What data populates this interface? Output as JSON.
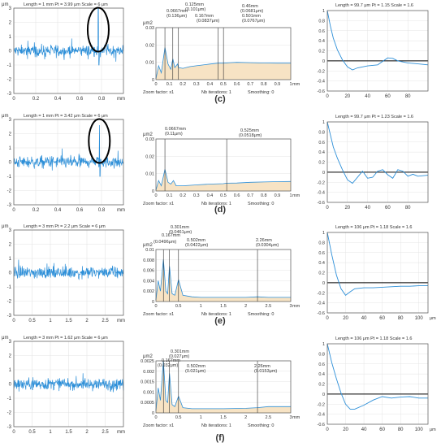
{
  "rows": [
    {
      "caption": "(c)",
      "profile": {
        "header": "Length = 1 mm  Pt = 3.99 μm  Scale = 6 μm",
        "unit": "μm",
        "xticks": [
          "0",
          "0.2",
          "0.4",
          "0.6",
          "0.8"
        ],
        "yticks": [
          "3",
          "2",
          "1",
          "0",
          "-1",
          "-2",
          "-3"
        ],
        "xunit": "mm"
      },
      "psd": {
        "unit": "μm2",
        "yticks": [
          "0.03",
          "0.02",
          "0.01",
          "0"
        ],
        "xticks": [
          "0",
          "0.1",
          "0.2",
          "0.3",
          "0.4",
          "0.5",
          "0.6",
          "0.7",
          "0.8",
          "0.9",
          "1"
        ],
        "xunit": "mm",
        "annotations": [
          {
            "line1": "0.125mm",
            "line2": "(0.101μm)"
          },
          {
            "line1": "0.0667mm",
            "line2": "(0.136μm)"
          },
          {
            "line1": "0.167mm",
            "line2": "(0.0837μm)"
          },
          {
            "line1": "0.46mm",
            "line2": "(0.0681μm)"
          },
          {
            "line1": "0.501mm",
            "line2": "(0.0767μm)"
          }
        ],
        "footer": {
          "zoom": "Zoom factor: x1",
          "iter": "Nb iterations: 1",
          "smooth": "Smoothing: 0"
        }
      },
      "acf": {
        "header": "Length = 99.7 μm  Pt = 1.15  Scale = 1.6",
        "yticks": [
          "1",
          "0.8",
          "0.6",
          "0.4",
          "0.2",
          "0",
          "-0.2",
          "-0.4",
          "-0.6"
        ],
        "xticks": [
          "0",
          "20",
          "40",
          "60",
          "80"
        ]
      }
    },
    {
      "caption": "(d)",
      "profile": {
        "header": "Length = 1 mm  Pt = 3.42 μm  Scale = 6 μm",
        "unit": "μm",
        "xticks": [
          "0",
          "0.2",
          "0.4",
          "0.6",
          "0.8"
        ],
        "yticks": [
          "3",
          "2",
          "1",
          "0",
          "-1",
          "-2",
          "-3"
        ],
        "xunit": "mm"
      },
      "psd": {
        "unit": "μm2",
        "yticks": [
          "0.03",
          "0.02",
          "0.01",
          "0"
        ],
        "xticks": [
          "0",
          "0.1",
          "0.2",
          "0.3",
          "0.4",
          "0.5",
          "0.6",
          "0.7",
          "0.8",
          "0.9",
          "1"
        ],
        "xunit": "mm",
        "annotations": [
          {
            "line1": "0.0667mm",
            "line2": "(0.11μm)"
          },
          {
            "line1": "0.525mm",
            "line2": "(0.0518μm)"
          }
        ],
        "footer": {
          "zoom": "Zoom factor: x1",
          "iter": "Nb iterations: 1",
          "smooth": "Smoothing: 0"
        }
      },
      "acf": {
        "header": "Length = 99.7 μm  Pt = 1.23  Scale = 1.6",
        "yticks": [
          "1",
          "0.8",
          "0.6",
          "0.4",
          "0.2",
          "0",
          "-0.2",
          "-0.4",
          "-0.6"
        ],
        "xticks": [
          "0",
          "20",
          "40",
          "60",
          "80"
        ]
      }
    },
    {
      "caption": "(e)",
      "profile": {
        "header": "Length = 3 mm  Pt = 2.2 μm  Scale = 6 μm",
        "unit": "μm",
        "xticks": [
          "0",
          "0.5",
          "1",
          "1.5",
          "2",
          "2.5"
        ],
        "yticks": [
          "3",
          "2",
          "1",
          "0",
          "-1",
          "-2",
          "-3"
        ],
        "xunit": "mm"
      },
      "psd": {
        "unit": "μm2",
        "yticks": [
          "0.01",
          "0.008",
          "0.006",
          "0.004",
          "0.002",
          "0"
        ],
        "xticks": [
          "0",
          "0.5",
          "1",
          "1.5",
          "2",
          "2.5",
          "3"
        ],
        "xunit": "mm",
        "annotations": [
          {
            "line1": "0.301mm",
            "line2": "(0.0461μm)"
          },
          {
            "line1": "0.167mm",
            "line2": "(0.0496μm)"
          },
          {
            "line1": "0.502mm",
            "line2": "(0.0422μm)"
          },
          {
            "line1": "2.26mm",
            "line2": "(0.0304μm)"
          }
        ],
        "footer": {
          "zoom": "Zoom factor: x1",
          "iter": "Nb iterations: 1",
          "smooth": "Smoothing: 0"
        }
      },
      "acf": {
        "header": "Length = 106 μm  Pt = 1.18  Scale = 1.6",
        "yticks": [
          "1",
          "0.8",
          "0.6",
          "0.4",
          "0.2",
          "0",
          "-0.2",
          "-0.4",
          "-0.6"
        ],
        "xticks": [
          "0",
          "20",
          "40",
          "60",
          "80",
          "100"
        ],
        "xunit": "μm"
      }
    },
    {
      "caption": "(f)",
      "profile": {
        "header": "Length = 3 mm  Pt = 1.62 μm  Scale = 6 μm",
        "unit": "μm",
        "xticks": [
          "0",
          "0.5",
          "1",
          "1.5",
          "2",
          "2.5"
        ],
        "yticks": [
          "3",
          "2",
          "1",
          "0",
          "-1",
          "-2",
          "-3"
        ],
        "xunit": "mm"
      },
      "psd": {
        "unit": "μm2",
        "yticks": [
          "0.0025",
          "0.002",
          "0.0015",
          "0.001",
          "0.0005",
          "0"
        ],
        "xticks": [
          "0",
          "0.5",
          "1",
          "1.5",
          "2",
          "2.5",
          "3"
        ],
        "xunit": "mm",
        "annotations": [
          {
            "line1": "0.301mm",
            "line2": "(0.027μm)"
          },
          {
            "line1": "0.167mm",
            "line2": "(0.032μm)"
          },
          {
            "line1": "0.502mm",
            "line2": "(0.021μm)"
          },
          {
            "line1": "2.26mm",
            "line2": "(0.0153μm)"
          }
        ],
        "footer": {
          "zoom": "Zoom factor: x1",
          "iter": "Nb iterations: 1",
          "smooth": "Smoothing: 0"
        }
      },
      "acf": {
        "header": "Length = 106 μm  Pt = 1.18  Scale = 1.6",
        "yticks": [
          "1",
          "0.8",
          "0.6",
          "0.4",
          "0.2",
          "0",
          "-0.2",
          "-0.4",
          "-0.6"
        ],
        "xticks": [
          "0",
          "20",
          "40",
          "60",
          "80",
          "100"
        ],
        "xunit": "μm"
      }
    }
  ],
  "chart_data": [
    {
      "type": "line",
      "panel": "c-profile",
      "xlim": [
        0,
        1
      ],
      "ylim": [
        -3,
        3
      ],
      "spike_x": 0.77,
      "spike_y": 3.0,
      "circled": true
    },
    {
      "type": "area",
      "panel": "c-psd",
      "xlim": [
        0,
        1
      ],
      "ylim": [
        0,
        0.03
      ],
      "x": [
        0.0,
        0.02,
        0.04,
        0.0667,
        0.09,
        0.11,
        0.125,
        0.14,
        0.16,
        0.167,
        0.2,
        0.25,
        0.3,
        0.35,
        0.4,
        0.46,
        0.501,
        0.55,
        0.6,
        0.7,
        0.8,
        0.9,
        1.0
      ],
      "y": [
        0.0005,
        0.008,
        0.004,
        0.0185,
        0.009,
        0.006,
        0.012,
        0.007,
        0.009,
        0.007,
        0.0065,
        0.0075,
        0.008,
        0.0085,
        0.009,
        0.0095,
        0.0095,
        0.0098,
        0.01,
        0.0098,
        0.0096,
        0.0095,
        0.0095
      ],
      "peaks_x": [
        0.0667,
        0.125,
        0.167,
        0.46,
        0.501
      ]
    },
    {
      "type": "line",
      "panel": "c-acf",
      "xlim": [
        0,
        100
      ],
      "ylim": [
        -0.6,
        1
      ],
      "x": [
        0,
        3,
        6,
        10,
        15,
        20,
        25,
        30,
        40,
        50,
        60,
        65,
        70,
        80,
        90,
        100
      ],
      "y": [
        1.0,
        0.7,
        0.45,
        0.22,
        0.02,
        -0.12,
        -0.18,
        -0.14,
        -0.1,
        -0.08,
        0.06,
        0.05,
        0.0,
        -0.04,
        -0.06,
        -0.08
      ]
    },
    {
      "type": "line",
      "panel": "d-profile",
      "xlim": [
        0,
        1
      ],
      "ylim": [
        -3,
        3
      ],
      "spike_x": 0.78,
      "spike_y": 2.6,
      "circled": true
    },
    {
      "type": "area",
      "panel": "d-psd",
      "xlim": [
        0,
        1
      ],
      "ylim": [
        0,
        0.03
      ],
      "x": [
        0.0,
        0.02,
        0.04,
        0.0667,
        0.09,
        0.11,
        0.13,
        0.15,
        0.2,
        0.3,
        0.4,
        0.5,
        0.525,
        0.6,
        0.7,
        0.8,
        0.9,
        1.0
      ],
      "y": [
        0.0005,
        0.006,
        0.003,
        0.0125,
        0.005,
        0.004,
        0.006,
        0.003,
        0.003,
        0.0035,
        0.004,
        0.0042,
        0.0045,
        0.0046,
        0.005,
        0.0052,
        0.0054,
        0.0055
      ],
      "peaks_x": [
        0.0667,
        0.525
      ]
    },
    {
      "type": "line",
      "panel": "d-acf",
      "xlim": [
        0,
        100
      ],
      "ylim": [
        -0.6,
        1
      ],
      "x": [
        0,
        3,
        6,
        10,
        15,
        20,
        25,
        30,
        35,
        40,
        45,
        50,
        55,
        60,
        65,
        70,
        75,
        80,
        85,
        90,
        100
      ],
      "y": [
        1.0,
        0.75,
        0.5,
        0.28,
        0.05,
        -0.15,
        -0.22,
        -0.1,
        0.02,
        -0.12,
        -0.1,
        0.02,
        0.05,
        -0.05,
        -0.12,
        0.05,
        0.02,
        -0.08,
        -0.04,
        -0.08,
        -0.06
      ]
    },
    {
      "type": "line",
      "panel": "e-profile",
      "xlim": [
        0,
        3
      ],
      "ylim": [
        -3,
        3
      ]
    },
    {
      "type": "area",
      "panel": "e-psd",
      "xlim": [
        0,
        3
      ],
      "ylim": [
        0,
        0.01
      ],
      "x": [
        0.0,
        0.05,
        0.1,
        0.167,
        0.22,
        0.26,
        0.301,
        0.36,
        0.42,
        0.502,
        0.6,
        0.8,
        1.0,
        1.5,
        2.0,
        2.26,
        2.5,
        3.0
      ],
      "y": [
        0.0003,
        0.004,
        0.002,
        0.0081,
        0.002,
        0.0015,
        0.0068,
        0.0015,
        0.0012,
        0.0042,
        0.0012,
        0.0009,
        0.0008,
        0.0008,
        0.0008,
        0.0009,
        0.0008,
        0.0008
      ],
      "peaks_x": [
        0.167,
        0.301,
        0.502,
        2.26
      ]
    },
    {
      "type": "line",
      "panel": "e-acf",
      "xlim": [
        0,
        110
      ],
      "ylim": [
        -0.6,
        1
      ],
      "x": [
        0,
        5,
        10,
        15,
        20,
        25,
        30,
        40,
        50,
        60,
        70,
        80,
        90,
        100,
        110
      ],
      "y": [
        1.0,
        0.55,
        0.15,
        -0.12,
        -0.25,
        -0.18,
        -0.12,
        -0.1,
        -0.1,
        -0.09,
        -0.08,
        -0.07,
        -0.07,
        -0.06,
        -0.06
      ]
    },
    {
      "type": "line",
      "panel": "f-profile",
      "xlim": [
        0,
        3
      ],
      "ylim": [
        -3,
        3
      ]
    },
    {
      "type": "area",
      "panel": "f-psd",
      "xlim": [
        0,
        3
      ],
      "ylim": [
        0,
        0.0025
      ],
      "x": [
        0.0,
        0.05,
        0.1,
        0.167,
        0.22,
        0.26,
        0.301,
        0.36,
        0.42,
        0.502,
        0.6,
        0.8,
        1.0,
        1.5,
        2.0,
        2.26,
        2.5,
        3.0
      ],
      "y": [
        0.0001,
        0.0012,
        0.0006,
        0.0025,
        0.0006,
        0.0005,
        0.0019,
        0.0004,
        0.0003,
        0.0008,
        0.00025,
        0.0002,
        0.0002,
        0.0002,
        0.00022,
        0.00025,
        0.0003,
        0.0003
      ],
      "peaks_x": [
        0.167,
        0.301,
        0.502,
        2.26
      ]
    },
    {
      "type": "line",
      "panel": "f-acf",
      "xlim": [
        0,
        110
      ],
      "ylim": [
        -0.6,
        1
      ],
      "x": [
        0,
        5,
        10,
        15,
        20,
        25,
        30,
        40,
        50,
        60,
        70,
        80,
        90,
        100,
        110
      ],
      "y": [
        1.0,
        0.62,
        0.3,
        0.02,
        -0.2,
        -0.3,
        -0.3,
        -0.22,
        -0.12,
        -0.05,
        -0.08,
        -0.06,
        -0.05,
        -0.08,
        -0.08
      ]
    }
  ],
  "colors": {
    "line": "#2d8fd8",
    "fill": "#f7e3c4",
    "frame": "#555555",
    "grid": "#e4e4e4"
  }
}
